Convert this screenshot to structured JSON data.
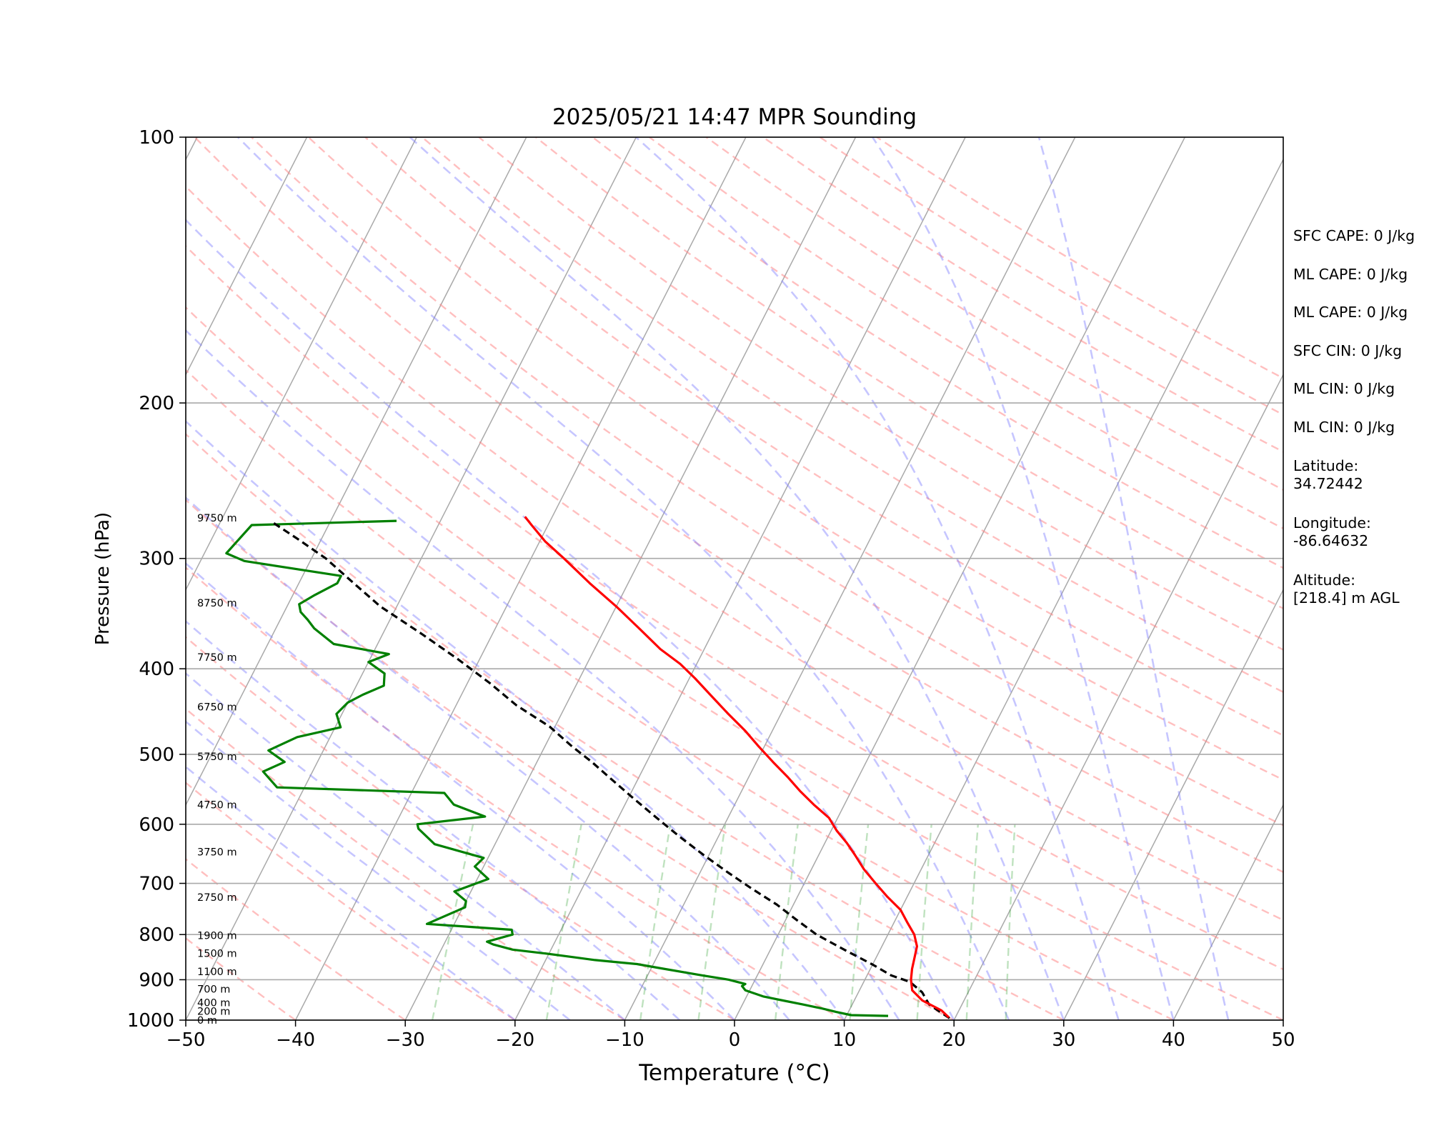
{
  "title": "2025/05/21 14:47 MPR Sounding",
  "axes": {
    "xlabel": "Temperature (°C)",
    "ylabel": "Pressure (hPa)",
    "x_ticks": [
      "−50",
      "−40",
      "−30",
      "−20",
      "−10",
      "0",
      "10",
      "20",
      "30",
      "40",
      "50"
    ],
    "y_ticks": [
      "100",
      "200",
      "300",
      "400",
      "500",
      "600",
      "700",
      "800",
      "900",
      "1000"
    ]
  },
  "stats": {
    "sfc_cape": "SFC CAPE: 0 J/kg",
    "ml_cape_1": "ML CAPE: 0 J/kg",
    "ml_cape_2": "ML CAPE: 0 J/kg",
    "sfc_cin": "SFC CIN: 0 J/kg",
    "ml_cin_1": "ML CIN: 0 J/kg",
    "ml_cin_2": "ML CIN: 0 J/kg",
    "latitude_label": "Latitude:",
    "latitude_value": "34.72442",
    "longitude_label": "Longitude:",
    "longitude_value": "-86.64632",
    "altitude_label": "Altitude:",
    "altitude_value": "[218.4] m AGL"
  },
  "chart_data": {
    "type": "line",
    "title": "2025/05/21 14:47 MPR Sounding",
    "xlabel": "Temperature (°C)",
    "ylabel": "Pressure (hPa)",
    "xlim": [
      -50,
      50
    ],
    "ylim": [
      1000,
      100
    ],
    "y_scale": "log",
    "skew": true,
    "grid": true,
    "height_labels": [
      {
        "text": "0 m",
        "p": 1000
      },
      {
        "text": "200 m",
        "p": 977
      },
      {
        "text": "400 m",
        "p": 955
      },
      {
        "text": "700 m",
        "p": 922
      },
      {
        "text": "1100 m",
        "p": 881
      },
      {
        "text": "1500 m",
        "p": 840
      },
      {
        "text": "1900 m",
        "p": 802
      },
      {
        "text": "2750 m",
        "p": 726
      },
      {
        "text": "3750 m",
        "p": 645
      },
      {
        "text": "4750 m",
        "p": 570
      },
      {
        "text": "5750 m",
        "p": 503
      },
      {
        "text": "6750 m",
        "p": 442
      },
      {
        "text": "7750 m",
        "p": 388
      },
      {
        "text": "8750 m",
        "p": 337
      },
      {
        "text": "9750 m",
        "p": 270
      }
    ],
    "series": [
      {
        "name": "Temperature",
        "color": "#ff0000",
        "points": [
          [
            19.4,
            993
          ],
          [
            18.4,
            975
          ],
          [
            16.2,
            950
          ],
          [
            14.8,
            925
          ],
          [
            14.2,
            900
          ],
          [
            13.8,
            875
          ],
          [
            13.5,
            850
          ],
          [
            13.2,
            825
          ],
          [
            12.4,
            800
          ],
          [
            11.2,
            775
          ],
          [
            10.0,
            750
          ],
          [
            8.2,
            725
          ],
          [
            6.5,
            700
          ],
          [
            4.8,
            675
          ],
          [
            3.3,
            650
          ],
          [
            2.0,
            630
          ],
          [
            0.5,
            610
          ],
          [
            -0.8,
            590
          ],
          [
            -2.8,
            570
          ],
          [
            -4.7,
            550
          ],
          [
            -6.5,
            530
          ],
          [
            -8.5,
            510
          ],
          [
            -10.5,
            490
          ],
          [
            -12.5,
            470
          ],
          [
            -14.8,
            450
          ],
          [
            -17.1,
            430
          ],
          [
            -19.5,
            410
          ],
          [
            -21.5,
            395
          ],
          [
            -24.0,
            380
          ],
          [
            -26.9,
            360
          ],
          [
            -30.0,
            340
          ],
          [
            -33.5,
            320
          ],
          [
            -37.0,
            300
          ],
          [
            -39.5,
            287
          ],
          [
            -41.5,
            275
          ],
          [
            -42.5,
            269
          ]
        ]
      },
      {
        "name": "Dewpoint",
        "color": "#008000",
        "points": [
          [
            13.8,
            989
          ],
          [
            10.4,
            987
          ],
          [
            8.9,
            979
          ],
          [
            7.4,
            970
          ],
          [
            5.5,
            960
          ],
          [
            3.5,
            950
          ],
          [
            1.5,
            940
          ],
          [
            -0.4,
            925
          ],
          [
            -0.9,
            915
          ],
          [
            -0.7,
            910
          ],
          [
            -2.4,
            900
          ],
          [
            -5.0,
            890
          ],
          [
            -9.5,
            872
          ],
          [
            -11.5,
            864
          ],
          [
            -13.3,
            860
          ],
          [
            -15.5,
            855
          ],
          [
            -17.5,
            849
          ],
          [
            -20.5,
            840
          ],
          [
            -23.5,
            832
          ],
          [
            -25.5,
            821
          ],
          [
            -26.2,
            815
          ],
          [
            -24.2,
            800
          ],
          [
            -24.5,
            790
          ],
          [
            -32.5,
            778
          ],
          [
            -29.8,
            745
          ],
          [
            -30.0,
            733
          ],
          [
            -31.5,
            715
          ],
          [
            -29.0,
            692
          ],
          [
            -30.8,
            670
          ],
          [
            -30.4,
            655
          ],
          [
            -35.5,
            632
          ],
          [
            -37.7,
            607
          ],
          [
            -38.0,
            600
          ],
          [
            -32.2,
            588
          ],
          [
            -35.6,
            570
          ],
          [
            -37.0,
            553
          ],
          [
            -52.5,
            545
          ],
          [
            -54.5,
            523
          ],
          [
            -53.0,
            510
          ],
          [
            -55.0,
            495
          ],
          [
            -53.0,
            478
          ],
          [
            -49.5,
            466
          ],
          [
            -50.5,
            450
          ],
          [
            -50.0,
            437
          ],
          [
            -49.0,
            428
          ],
          [
            -47.5,
            418
          ],
          [
            -48.0,
            405
          ],
          [
            -50.0,
            393
          ],
          [
            -48.5,
            385
          ],
          [
            -54.0,
            375
          ],
          [
            -56.5,
            360
          ],
          [
            -57.5,
            352
          ],
          [
            -58.5,
            345
          ],
          [
            -59.0,
            338
          ],
          [
            -58.0,
            330
          ],
          [
            -56.5,
            320
          ],
          [
            -56.5,
            314
          ],
          [
            -66.0,
            302
          ],
          [
            -68.0,
            296
          ],
          [
            -67.0,
            275
          ],
          [
            -54.0,
            272
          ]
        ]
      },
      {
        "name": "Parcel",
        "color": "#000000",
        "points": [
          [
            19.5,
            995
          ],
          [
            17.0,
            960
          ],
          [
            15.8,
            930
          ],
          [
            14.2,
            905
          ],
          [
            12.2,
            890
          ],
          [
            10.0,
            865
          ],
          [
            7.0,
            835
          ],
          [
            3.5,
            800
          ],
          [
            1.0,
            770
          ],
          [
            -1.5,
            740
          ],
          [
            -4.5,
            710
          ],
          [
            -7.5,
            680
          ],
          [
            -10.5,
            650
          ],
          [
            -13.5,
            620
          ],
          [
            -16.5,
            590
          ],
          [
            -19.6,
            560
          ],
          [
            -22.8,
            530
          ],
          [
            -25.0,
            510
          ],
          [
            -27.5,
            490
          ],
          [
            -30.5,
            465
          ],
          [
            -34.5,
            440
          ],
          [
            -38.0,
            415
          ],
          [
            -42.0,
            390
          ],
          [
            -46.5,
            365
          ],
          [
            -51.5,
            340
          ],
          [
            -55.0,
            320
          ],
          [
            -58.7,
            300
          ],
          [
            -62.2,
            285
          ],
          [
            -65.5,
            272
          ]
        ]
      }
    ]
  }
}
